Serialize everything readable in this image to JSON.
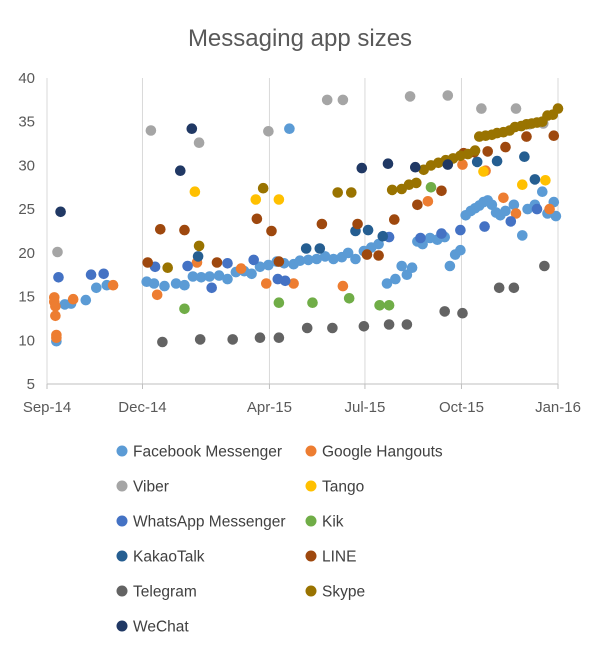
{
  "chart_data": {
    "type": "scatter",
    "title": "Messaging app sizes",
    "xlabel": "",
    "ylabel": "",
    "x_ticks": [
      "Sep-14",
      "Dec-14",
      "Apr-15",
      "Jul-15",
      "Oct-15",
      "Jan-16"
    ],
    "y_ticks": [
      "5",
      "10",
      "15",
      "20",
      "25",
      "30",
      "35",
      "40"
    ],
    "xlim": [
      "2014-09-01",
      "2016-01-01"
    ],
    "ylim": [
      5,
      40
    ],
    "grid": "vertical",
    "legend_position": "bottom",
    "series": [
      {
        "name": "Facebook Messenger",
        "color": "#5B9BD5",
        "points": [
          [
            "2014-09-10",
            9.9
          ],
          [
            "2014-09-18",
            14.1
          ],
          [
            "2014-09-24",
            14.2
          ],
          [
            "2014-10-08",
            14.6
          ],
          [
            "2014-10-18",
            16.0
          ],
          [
            "2014-10-28",
            16.3
          ],
          [
            "2014-12-05",
            16.7
          ],
          [
            "2014-12-12",
            16.5
          ],
          [
            "2014-12-22",
            16.2
          ],
          [
            "2015-01-02",
            16.5
          ],
          [
            "2015-01-10",
            16.3
          ],
          [
            "2015-01-18",
            17.3
          ],
          [
            "2015-01-26",
            17.2
          ],
          [
            "2015-02-03",
            17.3
          ],
          [
            "2015-02-12",
            17.4
          ],
          [
            "2015-02-20",
            17.0
          ],
          [
            "2015-02-28",
            17.8
          ],
          [
            "2015-03-08",
            17.9
          ],
          [
            "2015-03-15",
            17.6
          ],
          [
            "2015-03-23",
            18.4
          ],
          [
            "2015-03-31",
            18.6
          ],
          [
            "2015-04-08",
            19.0
          ],
          [
            "2015-04-15",
            18.8
          ],
          [
            "2015-04-20",
            34.2
          ],
          [
            "2015-04-24",
            18.7
          ],
          [
            "2015-04-30",
            19.1
          ],
          [
            "2015-05-08",
            19.2
          ],
          [
            "2015-05-16",
            19.3
          ],
          [
            "2015-05-24",
            19.6
          ],
          [
            "2015-06-01",
            19.3
          ],
          [
            "2015-06-09",
            19.5
          ],
          [
            "2015-06-15",
            20.0
          ],
          [
            "2015-06-22",
            19.3
          ],
          [
            "2015-06-30",
            20.2
          ],
          [
            "2015-07-07",
            20.6
          ],
          [
            "2015-07-14",
            21.0
          ],
          [
            "2015-07-22",
            16.5
          ],
          [
            "2015-07-30",
            17.0
          ],
          [
            "2015-08-05",
            18.5
          ],
          [
            "2015-08-10",
            17.5
          ],
          [
            "2015-08-15",
            18.3
          ],
          [
            "2015-08-20",
            21.3
          ],
          [
            "2015-08-25",
            21.0
          ],
          [
            "2015-09-01",
            21.7
          ],
          [
            "2015-09-08",
            21.5
          ],
          [
            "2015-09-15",
            21.8
          ],
          [
            "2015-09-20",
            18.5
          ],
          [
            "2015-09-25",
            19.8
          ],
          [
            "2015-09-30",
            20.3
          ],
          [
            "2015-10-05",
            24.3
          ],
          [
            "2015-10-10",
            24.8
          ],
          [
            "2015-10-14",
            25.1
          ],
          [
            "2015-10-18",
            25.4
          ],
          [
            "2015-10-22",
            25.8
          ],
          [
            "2015-10-26",
            26.0
          ],
          [
            "2015-10-30",
            25.5
          ],
          [
            "2015-11-03",
            24.6
          ],
          [
            "2015-11-07",
            24.3
          ],
          [
            "2015-11-12",
            24.8
          ],
          [
            "2015-11-20",
            25.5
          ],
          [
            "2015-11-28",
            22.0
          ],
          [
            "2015-12-03",
            25.0
          ],
          [
            "2015-12-10",
            25.5
          ],
          [
            "2015-12-17",
            27.0
          ],
          [
            "2015-12-22",
            24.5
          ],
          [
            "2015-12-28",
            25.8
          ],
          [
            "2015-12-30",
            24.2
          ]
        ]
      },
      {
        "name": "Google Hangouts",
        "color": "#ED7D31",
        "points": [
          [
            "2014-09-08",
            14.9
          ],
          [
            "2014-09-08",
            14.4
          ],
          [
            "2014-09-09",
            13.9
          ],
          [
            "2014-09-09",
            12.8
          ],
          [
            "2014-09-10",
            10.6
          ],
          [
            "2014-09-10",
            10.3
          ],
          [
            "2014-09-26",
            14.7
          ],
          [
            "2014-11-03",
            16.3
          ],
          [
            "2014-12-15",
            15.2
          ],
          [
            "2015-01-22",
            18.9
          ],
          [
            "2015-03-05",
            18.2
          ],
          [
            "2015-03-29",
            16.5
          ],
          [
            "2015-04-24",
            16.5
          ],
          [
            "2015-06-10",
            16.2
          ],
          [
            "2015-08-30",
            25.9
          ],
          [
            "2015-10-02",
            30.1
          ],
          [
            "2015-10-24",
            29.4
          ],
          [
            "2015-11-10",
            26.3
          ],
          [
            "2015-11-22",
            24.5
          ],
          [
            "2015-12-24",
            25.0
          ]
        ]
      },
      {
        "name": "Viber",
        "color": "#A5A5A5",
        "points": [
          [
            "2014-09-11",
            20.1
          ],
          [
            "2014-12-09",
            34.0
          ],
          [
            "2015-01-24",
            32.6
          ],
          [
            "2015-03-31",
            33.9
          ],
          [
            "2015-05-26",
            37.5
          ],
          [
            "2015-06-10",
            37.5
          ],
          [
            "2015-08-13",
            37.9
          ],
          [
            "2015-09-18",
            38.0
          ],
          [
            "2015-10-20",
            36.5
          ],
          [
            "2015-11-22",
            36.5
          ],
          [
            "2015-12-05",
            34.7
          ],
          [
            "2015-12-18",
            34.8
          ]
        ]
      },
      {
        "name": "Tango",
        "color": "#FFC000",
        "points": [
          [
            "2015-01-20",
            27.0
          ],
          [
            "2015-03-19",
            26.1
          ],
          [
            "2015-04-10",
            26.1
          ],
          [
            "2015-10-22",
            29.3
          ],
          [
            "2015-11-28",
            27.8
          ],
          [
            "2015-12-20",
            28.3
          ]
        ]
      },
      {
        "name": "WhatsApp Messenger",
        "color": "#4472C4",
        "points": [
          [
            "2014-09-12",
            17.2
          ],
          [
            "2014-10-13",
            17.5
          ],
          [
            "2014-10-25",
            17.6
          ],
          [
            "2014-12-13",
            18.4
          ],
          [
            "2015-01-13",
            18.5
          ],
          [
            "2015-02-05",
            16.0
          ],
          [
            "2015-02-20",
            18.8
          ],
          [
            "2015-03-17",
            19.2
          ],
          [
            "2015-04-09",
            17.0
          ],
          [
            "2015-04-16",
            16.8
          ],
          [
            "2015-07-24",
            21.8
          ],
          [
            "2015-08-23",
            21.7
          ],
          [
            "2015-09-12",
            22.2
          ],
          [
            "2015-09-30",
            22.6
          ],
          [
            "2015-10-23",
            23.0
          ],
          [
            "2015-11-17",
            23.6
          ],
          [
            "2015-12-12",
            25.0
          ]
        ]
      },
      {
        "name": "Kik",
        "color": "#70AD47",
        "points": [
          [
            "2015-01-10",
            13.6
          ],
          [
            "2015-04-10",
            14.3
          ],
          [
            "2015-05-12",
            14.3
          ],
          [
            "2015-06-16",
            14.8
          ],
          [
            "2015-07-15",
            14.0
          ],
          [
            "2015-07-24",
            14.0
          ],
          [
            "2015-09-02",
            27.5
          ]
        ]
      },
      {
        "name": "KakaoTalk",
        "color": "#255E91",
        "points": [
          [
            "2015-01-23",
            19.6
          ],
          [
            "2015-05-06",
            20.5
          ],
          [
            "2015-05-19",
            20.5
          ],
          [
            "2015-06-22",
            22.5
          ],
          [
            "2015-07-04",
            22.6
          ],
          [
            "2015-07-18",
            21.9
          ],
          [
            "2015-10-16",
            30.4
          ],
          [
            "2015-11-04",
            30.5
          ],
          [
            "2015-11-30",
            31.0
          ],
          [
            "2015-12-10",
            28.4
          ]
        ]
      },
      {
        "name": "LINE",
        "color": "#9E480E",
        "points": [
          [
            "2014-12-06",
            18.9
          ],
          [
            "2014-12-18",
            22.7
          ],
          [
            "2015-01-10",
            22.6
          ],
          [
            "2015-02-10",
            18.9
          ],
          [
            "2015-03-20",
            23.9
          ],
          [
            "2015-04-03",
            22.5
          ],
          [
            "2015-04-10",
            19.0
          ],
          [
            "2015-05-21",
            23.3
          ],
          [
            "2015-06-24",
            23.3
          ],
          [
            "2015-07-03",
            19.8
          ],
          [
            "2015-07-14",
            19.7
          ],
          [
            "2015-07-29",
            23.8
          ],
          [
            "2015-08-20",
            25.5
          ],
          [
            "2015-09-12",
            27.1
          ],
          [
            "2015-10-03",
            31.4
          ],
          [
            "2015-10-13",
            31.5
          ],
          [
            "2015-10-26",
            31.6
          ],
          [
            "2015-11-12",
            32.1
          ],
          [
            "2015-12-02",
            33.3
          ],
          [
            "2015-12-28",
            33.4
          ]
        ]
      },
      {
        "name": "Telegram",
        "color": "#636363",
        "points": [
          [
            "2014-12-20",
            9.8
          ],
          [
            "2015-01-25",
            10.1
          ],
          [
            "2015-02-25",
            10.1
          ],
          [
            "2015-03-23",
            10.3
          ],
          [
            "2015-04-10",
            10.3
          ],
          [
            "2015-05-07",
            11.4
          ],
          [
            "2015-05-31",
            11.4
          ],
          [
            "2015-06-30",
            11.6
          ],
          [
            "2015-07-24",
            11.8
          ],
          [
            "2015-08-10",
            11.8
          ],
          [
            "2015-09-15",
            13.3
          ],
          [
            "2015-10-02",
            13.1
          ],
          [
            "2015-11-06",
            16.0
          ],
          [
            "2015-11-20",
            16.0
          ],
          [
            "2015-12-19",
            18.5
          ]
        ]
      },
      {
        "name": "Skype",
        "color": "#997300",
        "points": [
          [
            "2014-12-25",
            18.3
          ],
          [
            "2015-01-24",
            20.8
          ],
          [
            "2015-03-26",
            27.4
          ],
          [
            "2015-06-05",
            26.9
          ],
          [
            "2015-06-18",
            26.9
          ],
          [
            "2015-07-27",
            27.2
          ],
          [
            "2015-08-05",
            27.3
          ],
          [
            "2015-08-12",
            27.8
          ],
          [
            "2015-08-19",
            28.0
          ],
          [
            "2015-08-26",
            29.5
          ],
          [
            "2015-09-02",
            30.0
          ],
          [
            "2015-09-09",
            30.3
          ],
          [
            "2015-09-16",
            30.6
          ],
          [
            "2015-09-23",
            30.8
          ],
          [
            "2015-09-30",
            31.1
          ],
          [
            "2015-10-07",
            31.3
          ],
          [
            "2015-10-14",
            31.7
          ],
          [
            "2015-10-18",
            33.3
          ],
          [
            "2015-10-24",
            33.4
          ],
          [
            "2015-10-30",
            33.5
          ],
          [
            "2015-11-04",
            33.7
          ],
          [
            "2015-11-10",
            33.8
          ],
          [
            "2015-11-16",
            34.0
          ],
          [
            "2015-11-21",
            34.4
          ],
          [
            "2015-11-27",
            34.5
          ],
          [
            "2015-12-02",
            34.7
          ],
          [
            "2015-12-07",
            34.8
          ],
          [
            "2015-12-12",
            34.9
          ],
          [
            "2015-12-17",
            35.0
          ],
          [
            "2015-12-22",
            35.7
          ],
          [
            "2015-12-27",
            35.8
          ],
          [
            "2016-01-01",
            36.5
          ]
        ]
      },
      {
        "name": "WeChat",
        "color": "#203864",
        "points": [
          [
            "2014-09-14",
            24.7
          ],
          [
            "2015-01-06",
            29.4
          ],
          [
            "2015-01-17",
            34.2
          ],
          [
            "2015-06-28",
            29.7
          ],
          [
            "2015-07-23",
            30.2
          ],
          [
            "2015-08-18",
            29.8
          ],
          [
            "2015-09-18",
            30.1
          ]
        ]
      }
    ]
  }
}
